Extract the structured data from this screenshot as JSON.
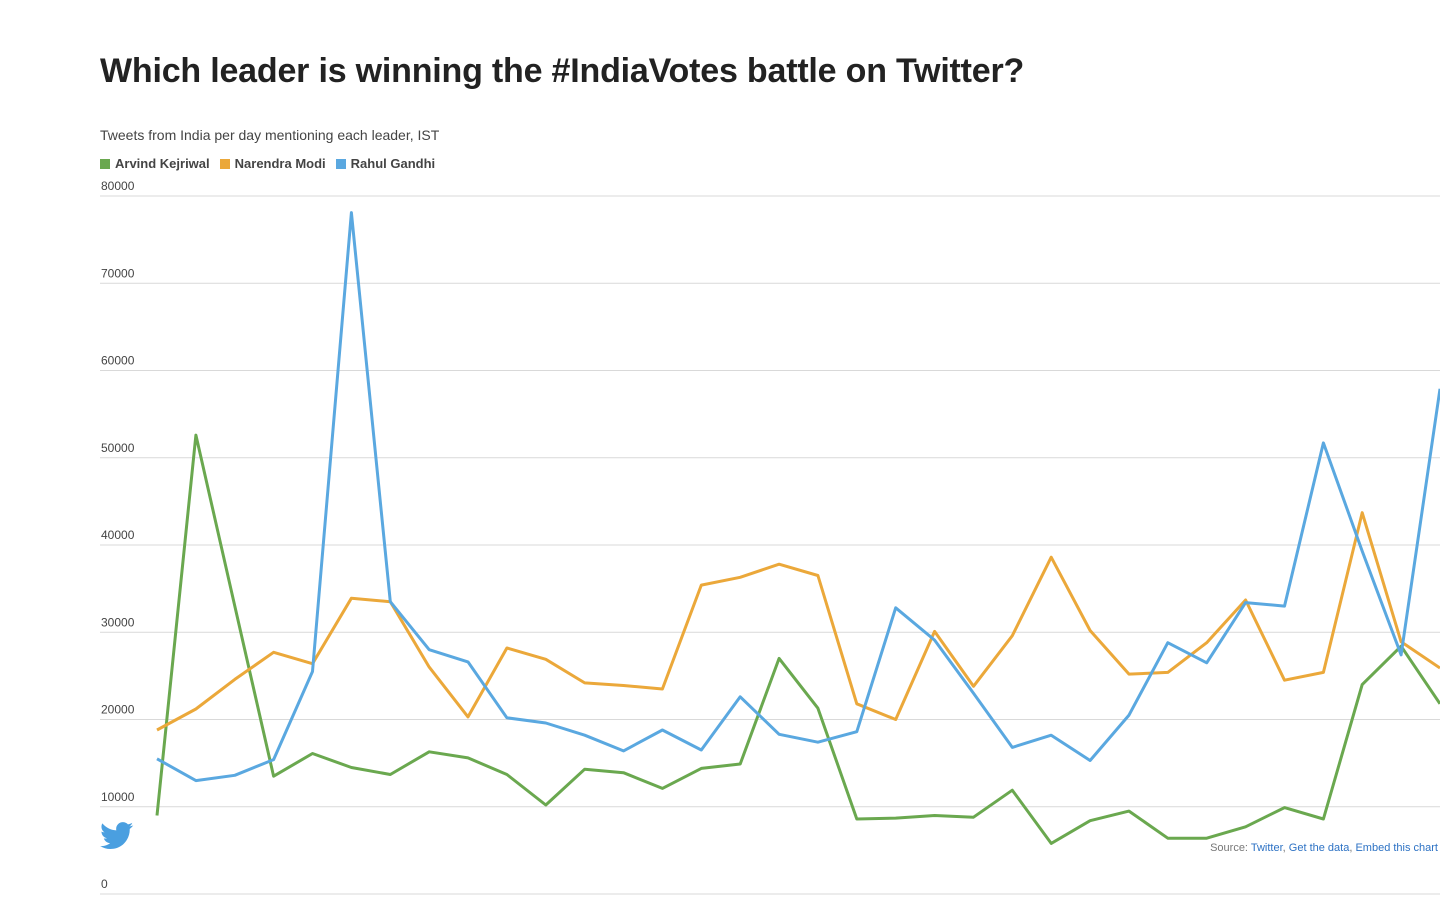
{
  "chart_data": {
    "type": "line",
    "title": "Which leader is winning the #IndiaVotes battle on Twitter?",
    "subtitle": "Tweets from India per day mentioning each leader, IST",
    "ylim": [
      0,
      80000
    ],
    "yticks": [
      0,
      10000,
      20000,
      30000,
      40000,
      50000,
      60000,
      70000,
      80000
    ],
    "grid": true,
    "legend_position": "top-left",
    "series": [
      {
        "name": "Arvind Kejriwal",
        "color": "#6aa84f",
        "values": [
          9000,
          52600,
          33000,
          13500,
          16100,
          14500,
          13700,
          16300,
          15600,
          13700,
          10200,
          14300,
          13900,
          12100,
          14400,
          14900,
          27000,
          21300,
          8600,
          8700,
          9000,
          8800,
          11900,
          5800,
          8400,
          9500,
          6400,
          6400,
          7700,
          9900,
          8600,
          24000,
          28400,
          21800
        ]
      },
      {
        "name": "Narendra Modi",
        "color": "#eba83a",
        "values": [
          18800,
          21200,
          24600,
          27700,
          26400,
          33900,
          33500,
          26000,
          20300,
          28200,
          26900,
          24200,
          23900,
          23500,
          35400,
          36300,
          37800,
          36500,
          21800,
          20000,
          30100,
          23800,
          29600,
          38600,
          30200,
          25200,
          25400,
          28800,
          33700,
          24500,
          25400,
          43700,
          28900,
          25900
        ]
      },
      {
        "name": "Rahul Gandhi",
        "color": "#5aa8e0",
        "values": [
          15500,
          13000,
          13600,
          15400,
          25500,
          78100,
          33500,
          28000,
          26600,
          20200,
          19600,
          18200,
          16400,
          18800,
          16500,
          22600,
          18300,
          17400,
          18600,
          32800,
          29100,
          23000,
          16800,
          18200,
          15300,
          20500,
          28800,
          26500,
          33400,
          33000,
          51700,
          39300,
          27400,
          57900
        ]
      }
    ]
  },
  "source": {
    "prefix": "Source:",
    "links": [
      "Twitter",
      "Get the data",
      "Embed this chart"
    ]
  },
  "icons": {
    "brand": "twitter-bird-icon"
  }
}
